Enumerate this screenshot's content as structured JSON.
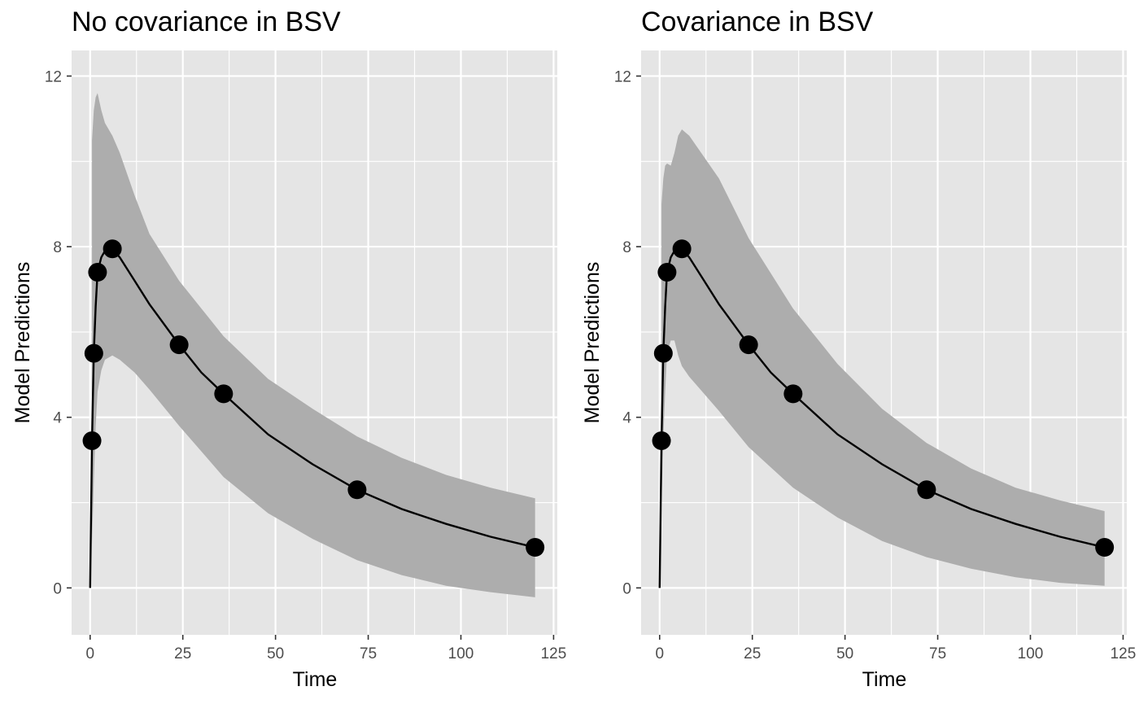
{
  "colors": {
    "panel_background": "#e5e5e5",
    "grid": "#ffffff",
    "ribbon": "#adadad",
    "line": "#000000",
    "points": "#000000"
  },
  "chart_data": [
    {
      "type": "line",
      "title": "No covariance in BSV",
      "xlabel": "Time",
      "ylabel": "Model Predictions",
      "xlim": [
        -5,
        126
      ],
      "ylim": [
        -1.1,
        12.6
      ],
      "x_ticks": [
        0,
        25,
        50,
        75,
        100,
        125
      ],
      "y_ticks": [
        0,
        4,
        8,
        12
      ],
      "grid": true,
      "points": {
        "x": [
          0.5,
          1,
          2,
          6,
          24,
          36,
          72,
          120
        ],
        "y": [
          3.45,
          5.5,
          7.4,
          7.95,
          5.7,
          4.55,
          2.3,
          0.95
        ]
      },
      "curve": {
        "x": [
          0,
          0.5,
          1,
          1.5,
          2,
          3,
          4,
          6,
          8,
          12,
          16,
          24,
          30,
          36,
          48,
          60,
          72,
          84,
          96,
          108,
          120
        ],
        "y": [
          0,
          3.45,
          5.5,
          6.6,
          7.4,
          7.75,
          7.9,
          7.95,
          7.75,
          7.2,
          6.65,
          5.7,
          5.05,
          4.55,
          3.6,
          2.9,
          2.3,
          1.85,
          1.5,
          1.2,
          0.95
        ]
      },
      "ribbon": {
        "x": [
          0.5,
          1,
          1.5,
          2,
          3,
          4,
          6,
          8,
          12,
          16,
          24,
          36,
          48,
          60,
          72,
          84,
          96,
          108,
          120
        ],
        "lower": [
          1.0,
          2.5,
          3.8,
          4.6,
          5.1,
          5.35,
          5.45,
          5.35,
          5.05,
          4.65,
          3.8,
          2.6,
          1.75,
          1.15,
          0.65,
          0.3,
          0.05,
          -0.1,
          -0.22
        ],
        "upper": [
          10.5,
          11.2,
          11.5,
          11.6,
          11.2,
          10.9,
          10.6,
          10.2,
          9.2,
          8.3,
          7.2,
          5.9,
          4.9,
          4.2,
          3.55,
          3.05,
          2.65,
          2.35,
          2.1
        ]
      }
    },
    {
      "type": "line",
      "title": "Covariance in BSV",
      "xlabel": "Time",
      "ylabel": "Model Predictions",
      "xlim": [
        -5,
        126
      ],
      "ylim": [
        -1.1,
        12.6
      ],
      "x_ticks": [
        0,
        25,
        50,
        75,
        100,
        125
      ],
      "y_ticks": [
        0,
        4,
        8,
        12
      ],
      "grid": true,
      "points": {
        "x": [
          0.5,
          1,
          2,
          6,
          24,
          36,
          72,
          120
        ],
        "y": [
          3.45,
          5.5,
          7.4,
          7.95,
          5.7,
          4.55,
          2.3,
          0.95
        ]
      },
      "curve": {
        "x": [
          0,
          0.5,
          1,
          1.5,
          2,
          3,
          4,
          6,
          8,
          12,
          16,
          24,
          30,
          36,
          48,
          60,
          72,
          84,
          96,
          108,
          120
        ],
        "y": [
          0,
          3.45,
          5.5,
          6.6,
          7.4,
          7.75,
          7.9,
          7.95,
          7.75,
          7.2,
          6.65,
          5.7,
          5.05,
          4.55,
          3.6,
          2.9,
          2.3,
          1.85,
          1.5,
          1.2,
          0.95
        ]
      },
      "ribbon": {
        "x": [
          0.5,
          1,
          1.5,
          2,
          3,
          4,
          5,
          6,
          8,
          12,
          16,
          24,
          36,
          48,
          60,
          72,
          84,
          96,
          108,
          120
        ],
        "lower": [
          2.0,
          3.5,
          4.6,
          5.5,
          5.8,
          5.8,
          5.45,
          5.2,
          4.95,
          4.55,
          4.15,
          3.3,
          2.35,
          1.65,
          1.1,
          0.72,
          0.45,
          0.25,
          0.12,
          0.05
        ],
        "upper": [
          9.0,
          9.6,
          9.9,
          9.95,
          9.9,
          10.2,
          10.6,
          10.75,
          10.6,
          10.1,
          9.6,
          8.2,
          6.55,
          5.25,
          4.2,
          3.4,
          2.8,
          2.35,
          2.05,
          1.8
        ]
      }
    }
  ]
}
